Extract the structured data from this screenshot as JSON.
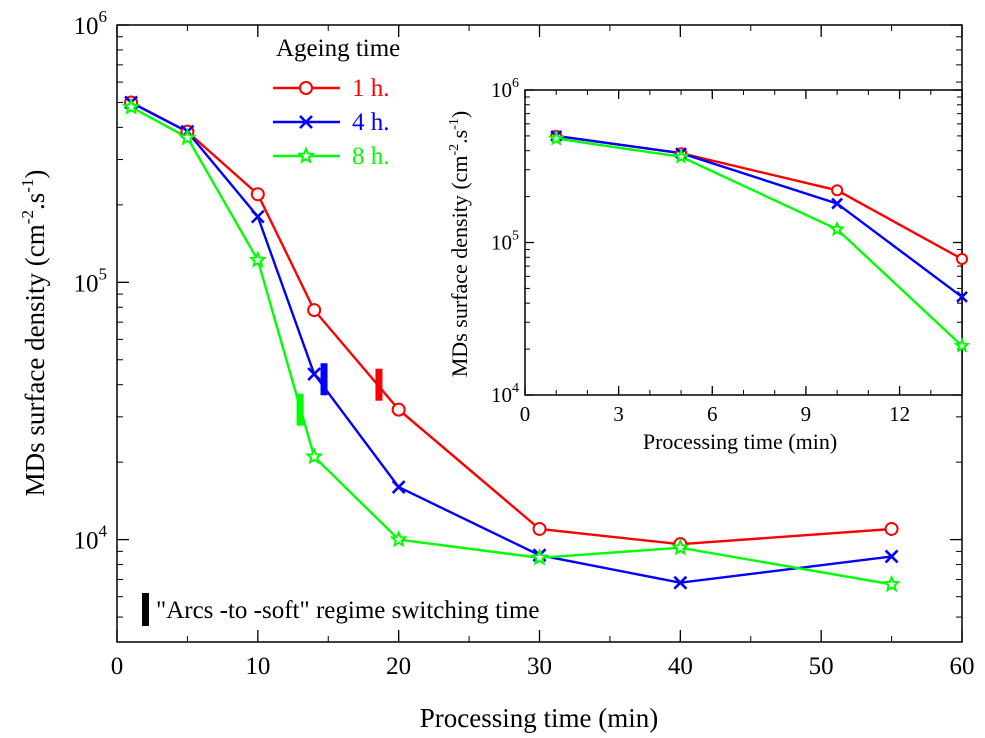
{
  "colors": {
    "axis": "#000000"
  },
  "chart_data": [
    {
      "type": "line",
      "xlabel": "Processing time (min)",
      "ylabel_main": "MDs surface density (cm",
      "ylabel_sup1": "-2",
      "ylabel_mid": ".s",
      "ylabel_sup2": "-1",
      "ylabel_end": ")",
      "x_scale": "linear",
      "y_scale": "log",
      "xlim": [
        0,
        60
      ],
      "ylim": [
        4000,
        1000000
      ],
      "xticks": [
        0,
        10,
        20,
        30,
        40,
        50,
        60
      ],
      "yticks": [
        {
          "base": "10",
          "exp": "4",
          "value": 10000
        },
        {
          "base": "10",
          "exp": "5",
          "value": 100000
        },
        {
          "base": "10",
          "exp": "6",
          "value": 1000000
        }
      ],
      "grid": false,
      "legend_title": "Ageing time",
      "legend_position": "top-left",
      "series": [
        {
          "name": "1 h.",
          "color": "#ff0000",
          "marker": "circle",
          "x": [
            1,
            5,
            10,
            14,
            20,
            30,
            40,
            55
          ],
          "y": [
            500000,
            385000,
            220000,
            78000,
            32000,
            11000,
            9600,
            11000
          ]
        },
        {
          "name": "4 h.",
          "color": "#0000ff",
          "marker": "x",
          "x": [
            1,
            5,
            10,
            14,
            20,
            30,
            40,
            55
          ],
          "y": [
            500000,
            385000,
            180000,
            44000,
            16000,
            8700,
            6800,
            8600
          ]
        },
        {
          "name": "8 h.",
          "color": "#00ff00",
          "marker": "star",
          "x": [
            1,
            5,
            10,
            14,
            20,
            30,
            40,
            55
          ],
          "y": [
            480000,
            365000,
            122000,
            21000,
            10000,
            8500,
            9300,
            6700
          ]
        }
      ],
      "switch_markers": [
        {
          "color": "#00ff00",
          "x": 13,
          "y": 32000
        },
        {
          "color": "#0000ff",
          "x": 14.7,
          "y": 42000
        },
        {
          "color": "#ff0000",
          "x": 18.6,
          "y": 40000
        }
      ],
      "annotation": "\"Arcs -to -soft\" regime switching time"
    },
    {
      "type": "line",
      "inset": true,
      "xlabel": "Processing time (min)",
      "ylabel_main": "MDs surface density (cm",
      "ylabel_sup1": "-2",
      "ylabel_mid": ".s",
      "ylabel_sup2": "-1",
      "ylabel_end": ")",
      "x_scale": "linear",
      "y_scale": "log",
      "xlim": [
        0,
        14
      ],
      "ylim": [
        10000,
        1000000
      ],
      "xticks": [
        0,
        3,
        6,
        9,
        12
      ],
      "yticks": [
        {
          "base": "10",
          "exp": "4",
          "value": 10000
        },
        {
          "base": "10",
          "exp": "5",
          "value": 100000
        },
        {
          "base": "10",
          "exp": "6",
          "value": 1000000
        }
      ],
      "grid": false,
      "series": [
        {
          "color": "#ff0000",
          "marker": "circle",
          "x": [
            1,
            5,
            10,
            14
          ],
          "y": [
            500000,
            385000,
            220000,
            78000
          ]
        },
        {
          "color": "#0000ff",
          "marker": "x",
          "x": [
            1,
            5,
            10,
            14
          ],
          "y": [
            500000,
            385000,
            180000,
            44000
          ]
        },
        {
          "color": "#00ff00",
          "marker": "star",
          "x": [
            1,
            5,
            10,
            14
          ],
          "y": [
            480000,
            365000,
            122000,
            21000
          ]
        }
      ]
    }
  ]
}
